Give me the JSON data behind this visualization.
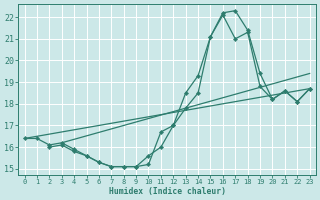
{
  "xlabel": "Humidex (Indice chaleur)",
  "xlim": [
    -0.5,
    23.5
  ],
  "ylim": [
    14.7,
    22.6
  ],
  "bg_color": "#cce8e8",
  "grid_color": "#aacccc",
  "line_color": "#2e7d6e",
  "xticks": [
    0,
    1,
    2,
    3,
    4,
    5,
    6,
    7,
    8,
    9,
    10,
    11,
    12,
    13,
    14,
    15,
    16,
    17,
    18,
    19,
    20,
    21,
    22,
    23
  ],
  "yticks": [
    15,
    16,
    17,
    18,
    19,
    20,
    21,
    22
  ],
  "curves": [
    {
      "x": [
        0,
        1,
        2,
        3,
        4,
        5,
        6,
        7,
        8,
        9,
        10,
        11,
        12,
        13,
        14,
        15,
        16,
        17,
        18,
        19,
        20,
        21,
        22,
        23
      ],
      "y": [
        16.4,
        16.4,
        16.1,
        16.2,
        15.9,
        15.6,
        15.3,
        15.1,
        15.1,
        15.1,
        15.2,
        16.7,
        17.0,
        18.5,
        19.3,
        21.1,
        22.2,
        22.3,
        21.4,
        19.4,
        18.2,
        18.6,
        18.1,
        18.7
      ],
      "marker": true
    },
    {
      "x": [
        2,
        3,
        4,
        5,
        6,
        7,
        8,
        9,
        10,
        11,
        12,
        13,
        14,
        15,
        16,
        17,
        18,
        19,
        20,
        21,
        22,
        23
      ],
      "y": [
        16.0,
        16.1,
        15.8,
        15.6,
        15.3,
        15.1,
        15.1,
        15.1,
        15.6,
        16.0,
        17.0,
        17.8,
        18.5,
        21.1,
        22.1,
        21.0,
        21.3,
        18.8,
        18.2,
        18.6,
        18.1,
        18.7
      ],
      "marker": true
    },
    {
      "x": [
        0,
        23
      ],
      "y": [
        16.4,
        18.7
      ],
      "marker": false
    },
    {
      "x": [
        3,
        23
      ],
      "y": [
        16.2,
        19.4
      ],
      "marker": false
    }
  ]
}
